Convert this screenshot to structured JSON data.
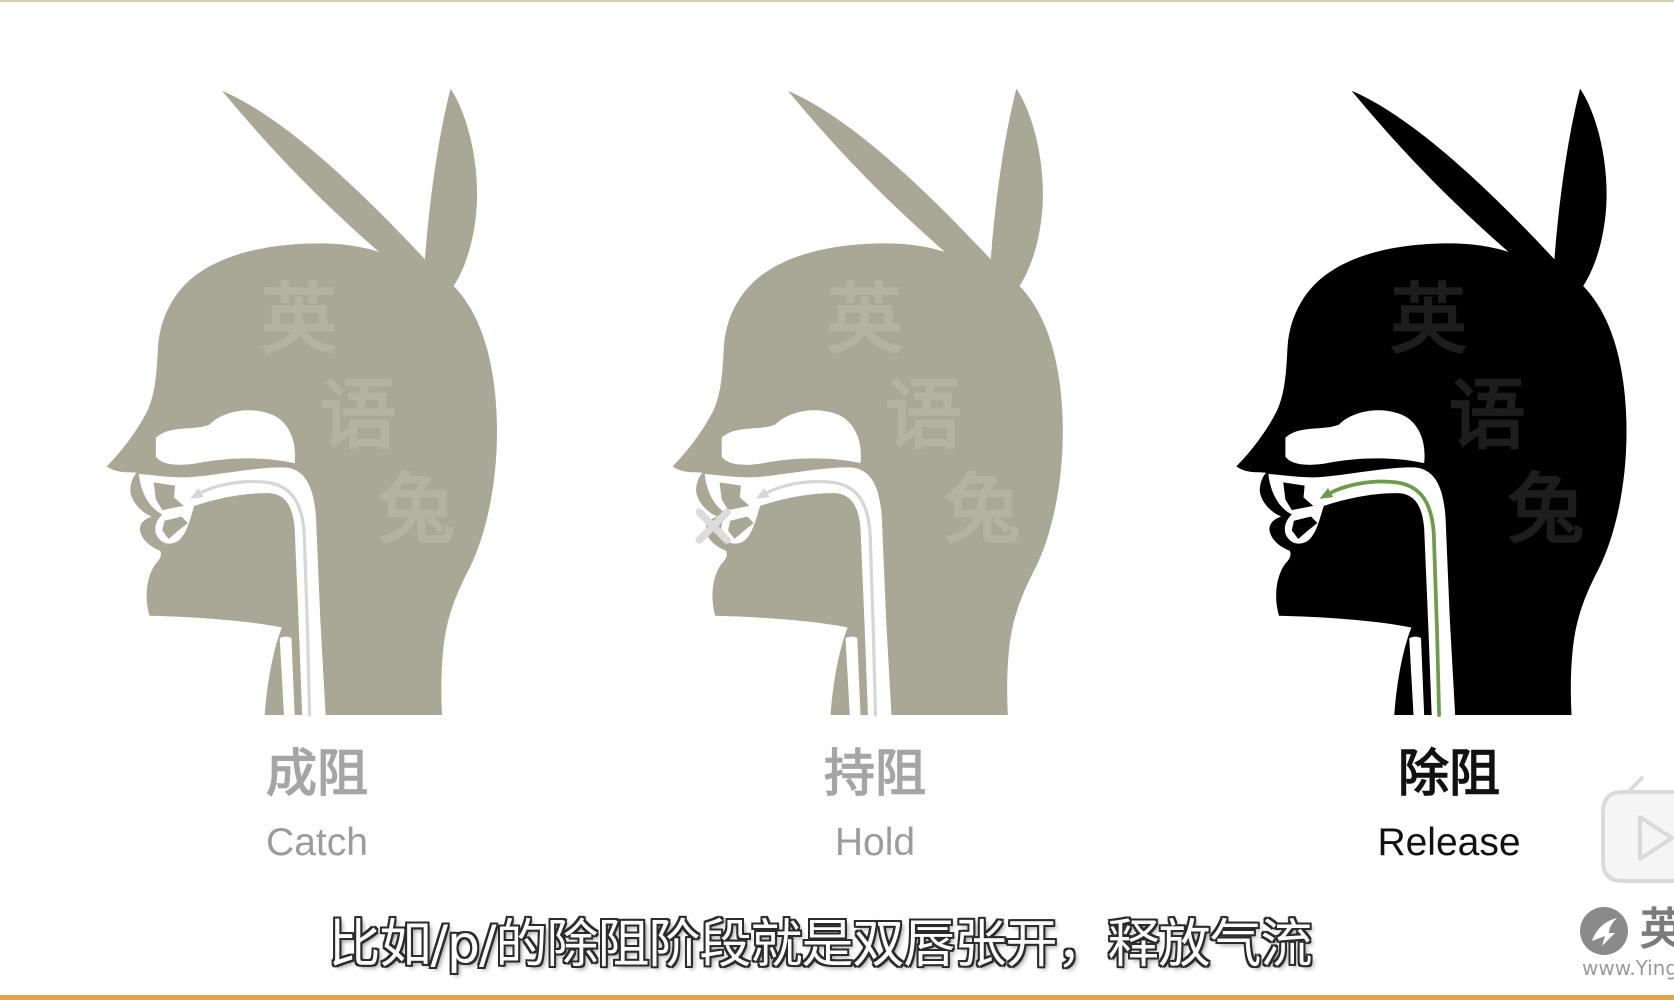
{
  "colors": {
    "background": "#ffffff",
    "head_inactive": "#a9a795",
    "head_active": "#000000",
    "watermark_inactive": "#b4b2a2",
    "watermark_active": "#1d1d1d",
    "airflow_inactive": "#d6d6d6",
    "airflow_active": "#6e9b4c",
    "blocked_mark": "#dcdcdc",
    "label_zh_inactive": "#a5a5a5",
    "label_en_inactive": "#9c9c9c",
    "label_active": "#111111",
    "top_rule": "#d8cfa6",
    "bottom_bar": "#e2a34a",
    "logo": "#8a8a8a"
  },
  "stages": [
    {
      "zh": "成阻",
      "en": "Catch",
      "active": false,
      "blocked": false
    },
    {
      "zh": "持阻",
      "en": "Hold",
      "active": false,
      "blocked": true
    },
    {
      "zh": "除阻",
      "en": "Release",
      "active": true,
      "blocked": false
    }
  ],
  "watermark": [
    "英",
    "语",
    "兔"
  ],
  "subtitle": "比如/p/的除阻阶段就是双唇张开，释放气流",
  "logo": {
    "mark": "英",
    "url": "www.Ying"
  },
  "icons": {
    "player": "tv-play-icon",
    "brand": "rabbit-logo-icon",
    "blocked": "x-mark-icon",
    "airflow": "arrow-icon"
  }
}
